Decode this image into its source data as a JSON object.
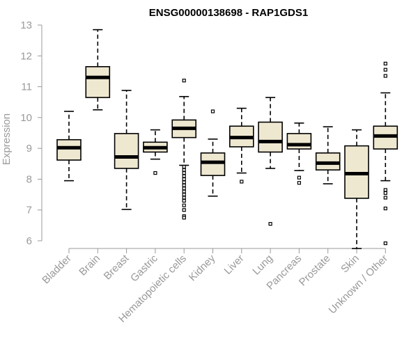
{
  "chart_data": {
    "type": "boxplot",
    "title": "ENSG00000138698 - RAP1GDS1",
    "ylabel": "Expression",
    "xlabel": "",
    "ylim": [
      6,
      13
    ],
    "yticks": [
      6,
      7,
      8,
      9,
      10,
      11,
      12,
      13
    ],
    "grid": false,
    "colors": {
      "box_fill": "#efe8d1",
      "axis": "#999999",
      "stroke": "#000000"
    },
    "categories": [
      "Bladder",
      "Brain",
      "Breast",
      "Gastric",
      "Hematopoietic cells",
      "Kidney",
      "Liver",
      "Lung",
      "Pancreas",
      "Prostate",
      "Skin",
      "Unknown / Other"
    ],
    "boxes": [
      {
        "whisker_low": 7.95,
        "q1": 8.62,
        "median": 9.02,
        "q3": 9.28,
        "whisker_high": 10.2,
        "outliers": []
      },
      {
        "whisker_low": 10.25,
        "q1": 10.65,
        "median": 11.3,
        "q3": 11.65,
        "whisker_high": 12.85,
        "outliers": []
      },
      {
        "whisker_low": 7.02,
        "q1": 8.35,
        "median": 8.72,
        "q3": 9.48,
        "whisker_high": 10.88,
        "outliers": []
      },
      {
        "whisker_low": 8.65,
        "q1": 8.88,
        "median": 9.02,
        "q3": 9.2,
        "whisker_high": 9.6,
        "outliers": [
          8.2
        ]
      },
      {
        "whisker_low": 8.45,
        "q1": 9.35,
        "median": 9.65,
        "q3": 9.92,
        "whisker_high": 10.68,
        "outliers": [
          11.2,
          8.4,
          8.3,
          8.2,
          8.1,
          8.0,
          7.9,
          7.8,
          7.7,
          7.6,
          7.5,
          7.4,
          7.3,
          7.15,
          7.0,
          6.8,
          6.75
        ]
      },
      {
        "whisker_low": 7.45,
        "q1": 8.12,
        "median": 8.55,
        "q3": 8.85,
        "whisker_high": 9.3,
        "outliers": [
          10.2
        ]
      },
      {
        "whisker_low": 8.2,
        "q1": 9.05,
        "median": 9.35,
        "q3": 9.72,
        "whisker_high": 10.3,
        "outliers": [
          7.92
        ]
      },
      {
        "whisker_low": 8.35,
        "q1": 8.88,
        "median": 9.22,
        "q3": 9.85,
        "whisker_high": 10.65,
        "outliers": [
          6.55
        ]
      },
      {
        "whisker_low": 8.28,
        "q1": 8.98,
        "median": 9.12,
        "q3": 9.48,
        "whisker_high": 9.82,
        "outliers": [
          8.05,
          7.88
        ]
      },
      {
        "whisker_low": 7.85,
        "q1": 8.3,
        "median": 8.52,
        "q3": 8.85,
        "whisker_high": 9.7,
        "outliers": []
      },
      {
        "whisker_low": 5.75,
        "q1": 7.38,
        "median": 8.18,
        "q3": 9.08,
        "whisker_high": 9.6,
        "outliers": []
      },
      {
        "whisker_low": 7.95,
        "q1": 8.98,
        "median": 9.4,
        "q3": 9.72,
        "whisker_high": 10.8,
        "outliers": [
          11.75,
          11.55,
          11.35,
          7.65,
          7.55,
          7.4,
          7.05,
          5.92
        ]
      }
    ]
  }
}
